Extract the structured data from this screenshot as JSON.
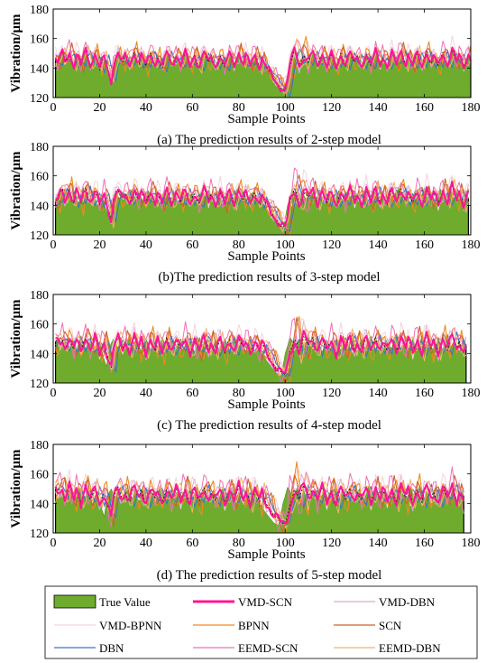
{
  "chart_data": [
    {
      "type": "area",
      "caption": "(a) The prediction results of 2-step model",
      "xlabel": "Sample Points",
      "ylabel": "Vibration/μm",
      "xlim": [
        0,
        180
      ],
      "ylim": [
        120,
        180
      ],
      "xticks": [
        0,
        20,
        40,
        60,
        80,
        100,
        120,
        140,
        160,
        180
      ],
      "yticks": [
        120,
        140,
        160,
        180
      ],
      "grid": false,
      "n_points": 180,
      "true_value": [
        146,
        143,
        148,
        150,
        144,
        147,
        151,
        145,
        142,
        149,
        146,
        141,
        148,
        152,
        147,
        143,
        145,
        150,
        146,
        139,
        144,
        148,
        141,
        136,
        131,
        143,
        147,
        150,
        146,
        144,
        148,
        145,
        142,
        147,
        151,
        146,
        143,
        149,
        145,
        141,
        147,
        150,
        146,
        142,
        148,
        144,
        140,
        146,
        151,
        147,
        143,
        145,
        149,
        146,
        142,
        147,
        150,
        145,
        141,
        146,
        149,
        144,
        141,
        146,
        151,
        147,
        143,
        148,
        145,
        141,
        145,
        149,
        144,
        140,
        146,
        150,
        146,
        142,
        147,
        151,
        146,
        143,
        148,
        145,
        141,
        146,
        149,
        145,
        141,
        147,
        143,
        140,
        138,
        135,
        133,
        131,
        129,
        127,
        126,
        125,
        131,
        140,
        145,
        151,
        149,
        143,
        146,
        150,
        147,
        144,
        148,
        151,
        146,
        142,
        147,
        150,
        145,
        141,
        146,
        149,
        144,
        140,
        145,
        150,
        146,
        142,
        147,
        151,
        146,
        143,
        148,
        145,
        141,
        146,
        150,
        145,
        141,
        147,
        152,
        146,
        143,
        148,
        145,
        141,
        146,
        150,
        146,
        142,
        148,
        152,
        147,
        143,
        149,
        145,
        141,
        146,
        150,
        145,
        141,
        147,
        152,
        146,
        143,
        148,
        145,
        141,
        146,
        151,
        146,
        142,
        148,
        153,
        147,
        143,
        149,
        145,
        141,
        146,
        150,
        145
      ]
    },
    {
      "type": "area",
      "caption": "(b)The prediction results of 3-step model",
      "xlabel": "Sample Points",
      "ylabel": "Vibration/μm",
      "xlim": [
        0,
        180
      ],
      "ylim": [
        120,
        180
      ],
      "xticks": [
        0,
        20,
        40,
        60,
        80,
        100,
        120,
        140,
        160,
        180
      ],
      "yticks": [
        120,
        140,
        160,
        180
      ],
      "grid": false,
      "n_points": 179,
      "true_value": [
        143,
        148,
        150,
        144,
        147,
        151,
        145,
        142,
        149,
        146,
        141,
        148,
        152,
        147,
        143,
        145,
        150,
        146,
        139,
        144,
        148,
        141,
        136,
        131,
        143,
        147,
        150,
        146,
        144,
        148,
        145,
        142,
        147,
        151,
        146,
        143,
        149,
        145,
        141,
        147,
        150,
        146,
        142,
        148,
        144,
        140,
        146,
        151,
        147,
        143,
        145,
        149,
        146,
        142,
        147,
        150,
        145,
        141,
        146,
        149,
        144,
        141,
        146,
        151,
        147,
        143,
        148,
        145,
        141,
        145,
        149,
        144,
        140,
        146,
        150,
        146,
        142,
        147,
        151,
        146,
        143,
        148,
        145,
        141,
        146,
        149,
        145,
        141,
        147,
        143,
        140,
        138,
        135,
        133,
        131,
        129,
        127,
        126,
        125,
        131,
        140,
        145,
        151,
        149,
        143,
        146,
        150,
        147,
        144,
        148,
        151,
        146,
        142,
        147,
        150,
        145,
        141,
        146,
        149,
        144,
        140,
        145,
        150,
        146,
        142,
        147,
        151,
        146,
        143,
        148,
        145,
        141,
        146,
        150,
        145,
        141,
        147,
        152,
        146,
        143,
        148,
        145,
        141,
        146,
        150,
        146,
        142,
        148,
        152,
        147,
        143,
        149,
        145,
        141,
        146,
        150,
        145,
        141,
        147,
        152,
        146,
        143,
        148,
        145,
        141,
        146,
        151,
        146,
        142,
        148,
        153,
        147,
        143,
        149,
        145,
        141,
        146,
        150,
        145
      ]
    },
    {
      "type": "area",
      "caption": "(c) The prediction results of 4-step model",
      "xlabel": "Sample Points",
      "ylabel": "Vibration/μm",
      "xlim": [
        0,
        180
      ],
      "ylim": [
        120,
        180
      ],
      "xticks": [
        0,
        20,
        40,
        60,
        80,
        100,
        120,
        140,
        160,
        180
      ],
      "yticks": [
        120,
        140,
        160,
        180
      ],
      "grid": false,
      "n_points": 178,
      "true_value": [
        148,
        150,
        144,
        147,
        151,
        145,
        142,
        149,
        146,
        141,
        148,
        152,
        147,
        143,
        145,
        150,
        146,
        139,
        144,
        148,
        141,
        136,
        131,
        143,
        147,
        150,
        146,
        144,
        148,
        145,
        142,
        147,
        151,
        146,
        143,
        149,
        145,
        141,
        147,
        150,
        146,
        142,
        148,
        144,
        140,
        146,
        151,
        147,
        143,
        145,
        149,
        146,
        142,
        147,
        150,
        145,
        141,
        146,
        149,
        144,
        141,
        146,
        151,
        147,
        143,
        148,
        145,
        141,
        145,
        149,
        144,
        140,
        146,
        150,
        146,
        142,
        147,
        151,
        146,
        143,
        148,
        145,
        141,
        146,
        149,
        145,
        141,
        147,
        143,
        140,
        138,
        135,
        133,
        131,
        129,
        127,
        126,
        125,
        131,
        140,
        145,
        151,
        149,
        143,
        146,
        150,
        147,
        144,
        148,
        151,
        146,
        142,
        147,
        150,
        145,
        141,
        146,
        149,
        144,
        140,
        145,
        150,
        146,
        142,
        147,
        151,
        146,
        143,
        148,
        145,
        141,
        146,
        150,
        145,
        141,
        147,
        152,
        146,
        143,
        148,
        145,
        141,
        146,
        150,
        146,
        142,
        148,
        152,
        147,
        143,
        149,
        145,
        141,
        146,
        150,
        145,
        141,
        147,
        152,
        146,
        143,
        148,
        145,
        141,
        146,
        151,
        146,
        142,
        148,
        153,
        147,
        143,
        149,
        145,
        141,
        146,
        150,
        145
      ]
    },
    {
      "type": "area",
      "caption": "(d) The prediction results of 5-step model",
      "xlabel": "Sample Points",
      "ylabel": "Vibration/μm",
      "xlim": [
        0,
        180
      ],
      "ylim": [
        120,
        180
      ],
      "xticks": [
        0,
        20,
        40,
        60,
        80,
        100,
        120,
        140,
        160,
        180
      ],
      "yticks": [
        120,
        140,
        160,
        180
      ],
      "grid": false,
      "n_points": 177,
      "true_value": [
        150,
        144,
        147,
        151,
        145,
        142,
        149,
        146,
        141,
        148,
        152,
        147,
        143,
        145,
        150,
        146,
        139,
        144,
        148,
        141,
        136,
        131,
        143,
        147,
        150,
        146,
        144,
        148,
        145,
        142,
        147,
        151,
        146,
        143,
        149,
        145,
        141,
        147,
        150,
        146,
        142,
        148,
        144,
        140,
        146,
        151,
        147,
        143,
        145,
        149,
        146,
        142,
        147,
        150,
        145,
        141,
        146,
        149,
        144,
        141,
        146,
        151,
        147,
        143,
        148,
        145,
        141,
        145,
        149,
        144,
        140,
        146,
        150,
        146,
        142,
        147,
        151,
        146,
        143,
        148,
        145,
        141,
        146,
        149,
        145,
        141,
        147,
        143,
        140,
        138,
        135,
        133,
        131,
        129,
        127,
        126,
        125,
        131,
        140,
        145,
        151,
        149,
        143,
        146,
        150,
        147,
        144,
        148,
        151,
        146,
        142,
        147,
        150,
        145,
        141,
        146,
        149,
        144,
        140,
        145,
        150,
        146,
        142,
        147,
        151,
        146,
        143,
        148,
        145,
        141,
        146,
        150,
        145,
        141,
        147,
        152,
        146,
        143,
        148,
        145,
        141,
        146,
        150,
        146,
        142,
        148,
        152,
        147,
        143,
        149,
        145,
        141,
        146,
        150,
        145,
        141,
        147,
        152,
        146,
        143,
        148,
        145,
        141,
        146,
        151,
        146,
        142,
        148,
        153,
        147,
        143,
        149,
        145,
        141,
        146,
        150,
        145
      ]
    }
  ],
  "legend": {
    "placement": "bottom",
    "items": [
      {
        "label": "True Value",
        "color": "#6fac2e",
        "style": "fill"
      },
      {
        "label": "VMD-SCN",
        "color": "#ff1493",
        "style": "thick"
      },
      {
        "label": "VMD-DBN",
        "color": "#d9a9d6",
        "style": "line"
      },
      {
        "label": "VMD-BPNN",
        "color": "#f4d4dc",
        "style": "line"
      },
      {
        "label": "BPNN",
        "color": "#f08a1c",
        "style": "line"
      },
      {
        "label": "SCN",
        "color": "#c8642c",
        "style": "line"
      },
      {
        "label": "DBN",
        "color": "#3a78c2",
        "style": "line"
      },
      {
        "label": "EEMD-SCN",
        "color": "#f070b4",
        "style": "line"
      },
      {
        "label": "EEMD-DBN",
        "color": "#f3b46a",
        "style": "line"
      }
    ]
  }
}
